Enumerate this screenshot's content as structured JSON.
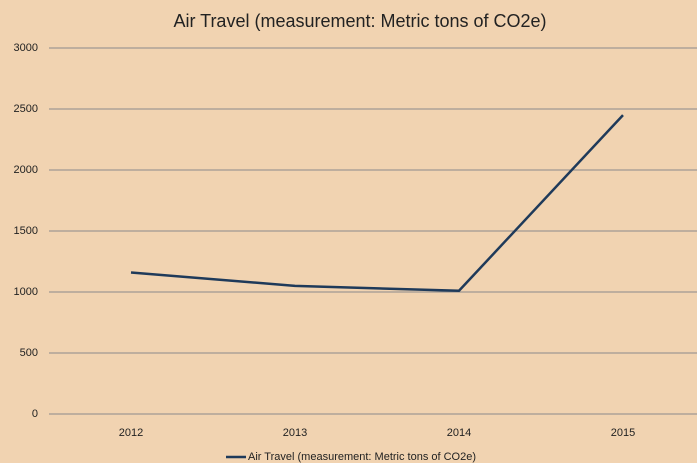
{
  "chart_data": {
    "type": "line",
    "title": "Air Travel (measurement: Metric tons of CO2e)",
    "categories": [
      "2012",
      "2013",
      "2014",
      "2015"
    ],
    "series": [
      {
        "name": "Air Travel (measurement: Metric tons of CO2e)",
        "color": "#1f3a5a",
        "values": [
          1160,
          1050,
          1010,
          2450
        ]
      }
    ],
    "ylim": [
      0,
      3000
    ],
    "yticks": [
      0,
      500,
      1000,
      1500,
      2000,
      2500,
      3000
    ],
    "grid": true,
    "legend": "bottom"
  }
}
